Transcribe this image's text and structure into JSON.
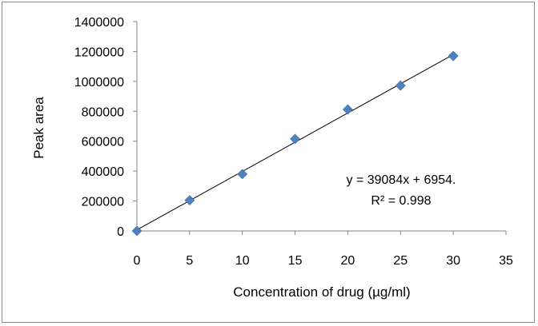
{
  "chart_data": {
    "type": "scatter",
    "title": "",
    "xlabel": "Concentration of drug (µg/ml)",
    "ylabel": "Peak area",
    "xlim": [
      0,
      35
    ],
    "ylim": [
      0,
      1400000
    ],
    "xticks": [
      0,
      5,
      10,
      15,
      20,
      25,
      30,
      35
    ],
    "yticks": [
      0,
      200000,
      400000,
      600000,
      800000,
      1000000,
      1200000,
      1400000
    ],
    "grid": false,
    "legend": "none",
    "series": [
      {
        "x": [
          0,
          5,
          10,
          15,
          20,
          25,
          30
        ],
        "y": [
          0,
          205000,
          380000,
          615000,
          812000,
          972000,
          1170000
        ],
        "marker": "diamond",
        "color": "#4f81bd"
      }
    ],
    "trendline": {
      "type": "linear",
      "slope": 39084,
      "intercept": 6954,
      "x_range": [
        0,
        30
      ],
      "color": "#000000"
    },
    "annotations": {
      "equation": "y = 39084x + 6954.",
      "r_squared": "R² = 0.998"
    }
  }
}
